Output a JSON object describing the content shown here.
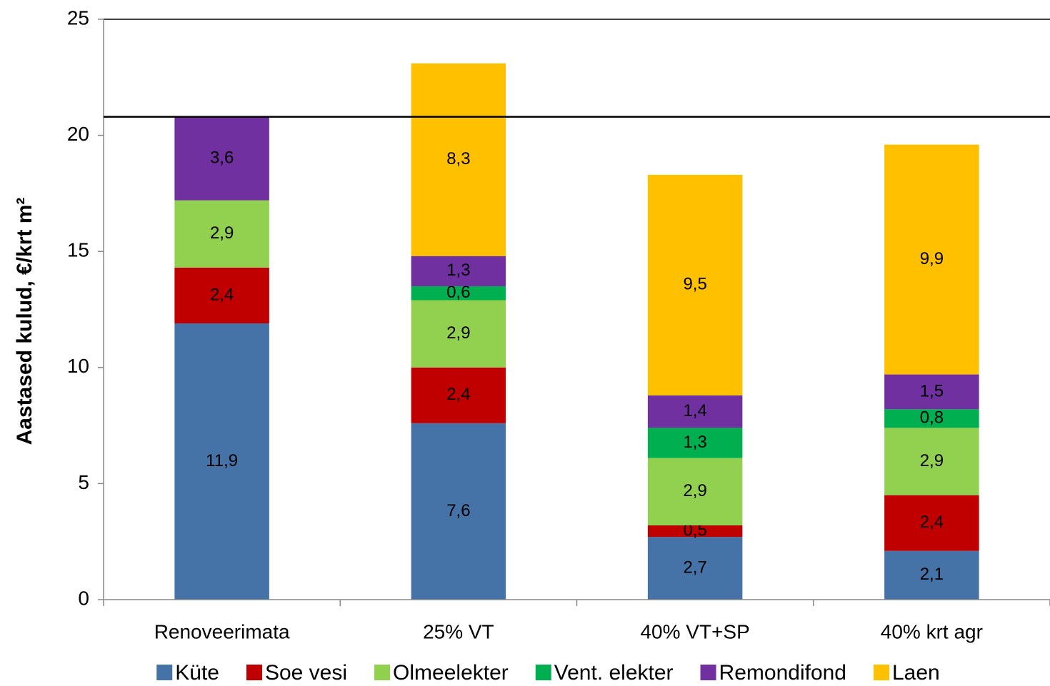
{
  "chart_data": {
    "type": "stacked_bar",
    "y_label": "Aastased kulud, €/krt m²",
    "categories": [
      "Renoveerimata",
      "25% VT",
      "40% VT+SP",
      "40% krt agr"
    ],
    "series": [
      {
        "name": "Küte",
        "color": "#4572a7",
        "values": [
          11.9,
          7.6,
          2.7,
          2.1
        ],
        "value_labels": [
          "11,9",
          "7,6",
          "2,7",
          "2,1"
        ]
      },
      {
        "name": "Soe vesi",
        "color": "#c00000",
        "values": [
          2.4,
          2.4,
          0.5,
          2.4
        ],
        "value_labels": [
          "2,4",
          "2,4",
          "0,5",
          "2,4"
        ]
      },
      {
        "name": "Olmeelekter",
        "color": "#92d050",
        "values": [
          2.9,
          2.9,
          2.9,
          2.9
        ],
        "value_labels": [
          "2,9",
          "2,9",
          "2,9",
          "2,9"
        ]
      },
      {
        "name": "Vent. elekter",
        "color": "#00b050",
        "values": [
          null,
          0.6,
          1.3,
          0.8
        ],
        "value_labels": [
          null,
          "0,6",
          "1,3",
          "0,8"
        ]
      },
      {
        "name": "Remondifond",
        "color": "#7030a0",
        "values": [
          3.6,
          1.3,
          1.4,
          1.5
        ],
        "value_labels": [
          "3,6",
          "1,3",
          "1,4",
          "1,5"
        ]
      },
      {
        "name": "Laen",
        "color": "#ffc000",
        "values": [
          null,
          8.3,
          9.5,
          9.9
        ],
        "value_labels": [
          null,
          "8,3",
          "9,5",
          "9,9"
        ]
      }
    ],
    "reference_line": 20.8,
    "ylim": [
      0,
      25
    ],
    "yticks": [
      0,
      5,
      10,
      15,
      20,
      25
    ],
    "legend": "bottom"
  }
}
